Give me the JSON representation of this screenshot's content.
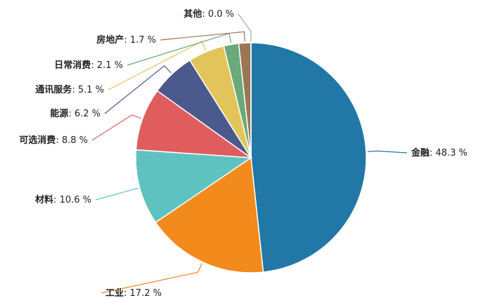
{
  "chart_data": {
    "type": "pie",
    "categories": [
      "金融",
      "工业",
      "材料",
      "可选消费",
      "能源",
      "通讯服务",
      "日常消费",
      "房地产",
      "其他"
    ],
    "values": [
      48.3,
      17.2,
      10.6,
      8.8,
      6.2,
      5.1,
      2.1,
      1.7,
      0.0
    ],
    "value_labels": [
      "48.3 %",
      "17.2 %",
      "10.6 %",
      "8.8 %",
      "6.2 %",
      "5.1 %",
      "2.1 %",
      "1.7 %",
      "0.0 %"
    ],
    "label_separator": ": ",
    "colors": [
      "#2177a6",
      "#f28a1c",
      "#5dc2c0",
      "#e05d5d",
      "#4a5a8c",
      "#e2c55a",
      "#6aa97a",
      "#9b7656",
      "#a0a8b8"
    ]
  }
}
